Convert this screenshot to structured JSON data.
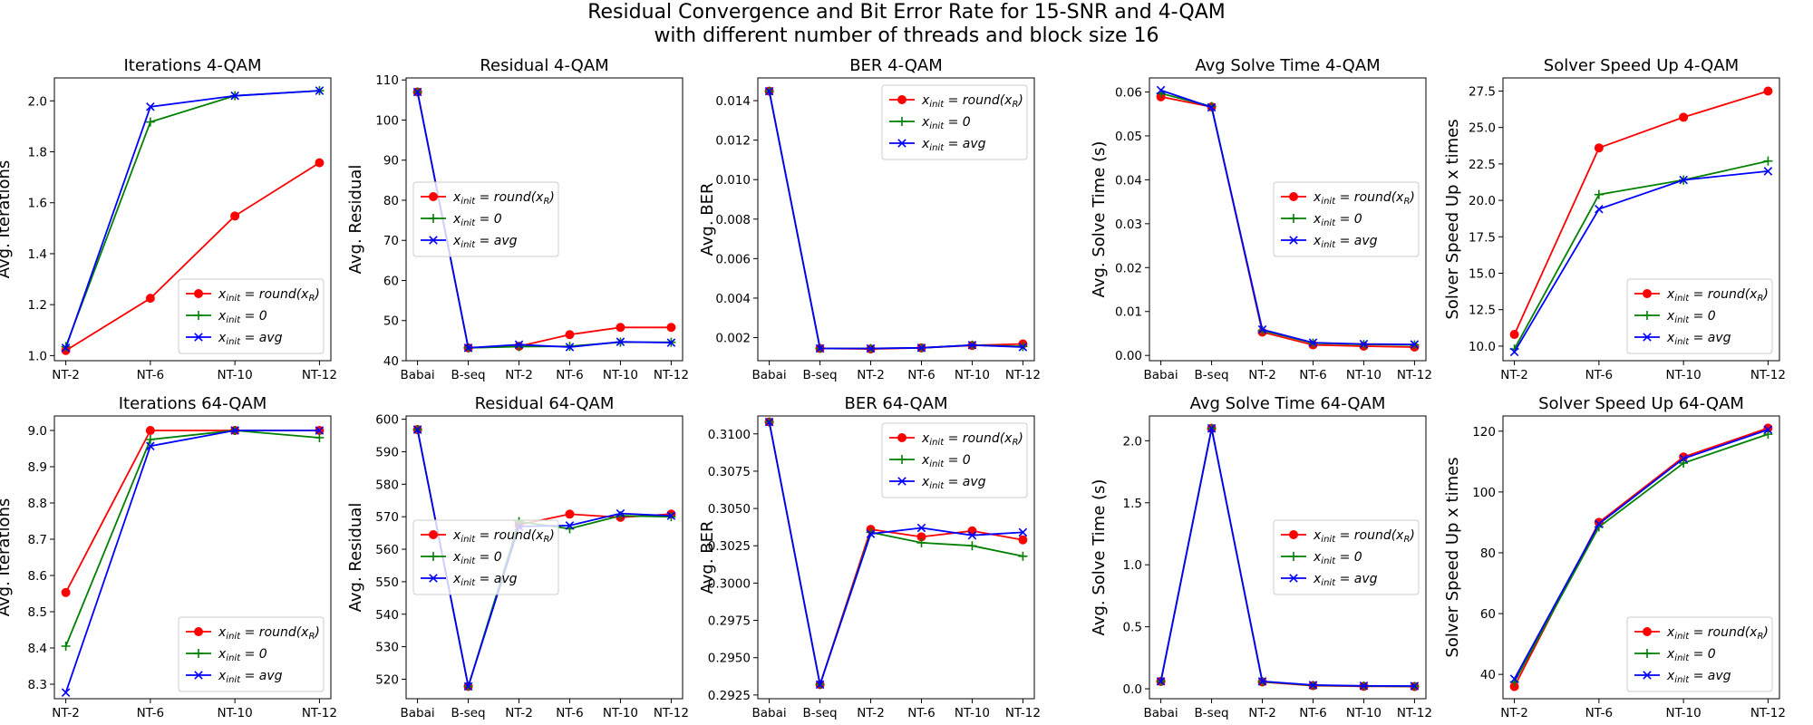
{
  "figure": {
    "title_line1": "Residual Convergence and Bit Error Rate for 15-SNR and 4-QAM",
    "title_line2": "with different number of threads and block size 16"
  },
  "legend_entries": [
    {
      "base": "x",
      "sub": "init",
      "eq": " = ",
      "expr": "round(x",
      "expr_sub": "R",
      "tail": ")",
      "color": "#ff0000",
      "marker": "circle"
    },
    {
      "base": "x",
      "sub": "init",
      "eq": " = ",
      "expr": "0",
      "expr_sub": "",
      "tail": "",
      "color": "#008000",
      "marker": "plus"
    },
    {
      "base": "x",
      "sub": "init",
      "eq": " = ",
      "expr": "avg",
      "expr_sub": "",
      "tail": "",
      "color": "#0000ff",
      "marker": "x"
    }
  ],
  "chart_data": [
    {
      "type": "line",
      "title": "Iterations 4-QAM",
      "xlabel": "",
      "ylabel": "Avg. Iterations",
      "categories": [
        "NT-2",
        "NT-6",
        "NT-10",
        "NT-12"
      ],
      "ylim": [
        0.98,
        2.09
      ],
      "yticks": [
        1.0,
        1.2,
        1.4,
        1.6,
        1.8,
        2.0
      ],
      "ytick_labels": [
        "1.0",
        "1.2",
        "1.4",
        "1.6",
        "1.8",
        "2.0"
      ],
      "legend_position": "lower-right",
      "grid": false,
      "series": [
        {
          "name": "x_init = round(x_R)",
          "color": "#ff0000",
          "marker": "circle",
          "values": [
            1.02,
            1.225,
            1.548,
            1.757
          ]
        },
        {
          "name": "x_init = 0",
          "color": "#008000",
          "marker": "plus",
          "values": [
            1.035,
            1.917,
            2.02,
            2.04
          ]
        },
        {
          "name": "x_init = avg",
          "color": "#0000ff",
          "marker": "x",
          "values": [
            1.03,
            1.977,
            2.02,
            2.04
          ]
        }
      ]
    },
    {
      "type": "line",
      "title": "Residual 4-QAM",
      "xlabel": "",
      "ylabel": "Avg. Residual",
      "categories": [
        "Babai",
        "B-seq",
        "NT-2",
        "NT-6",
        "NT-10",
        "NT-12"
      ],
      "ylim": [
        40,
        110.5
      ],
      "yticks": [
        40,
        50,
        60,
        70,
        80,
        90,
        100,
        110
      ],
      "ytick_labels": [
        "40",
        "50",
        "60",
        "70",
        "80",
        "90",
        "100",
        "110"
      ],
      "legend_position": "center-left",
      "grid": false,
      "series": [
        {
          "name": "x_init = round(x_R)",
          "color": "#ff0000",
          "marker": "circle",
          "values": [
            107.0,
            43.2,
            43.6,
            46.5,
            48.3,
            48.3
          ]
        },
        {
          "name": "x_init = 0",
          "color": "#008000",
          "marker": "plus",
          "values": [
            107.0,
            43.2,
            43.5,
            43.6,
            44.6,
            44.6
          ]
        },
        {
          "name": "x_init = avg",
          "color": "#0000ff",
          "marker": "x",
          "values": [
            107.0,
            43.2,
            44.0,
            43.4,
            44.7,
            44.5
          ]
        }
      ]
    },
    {
      "type": "line",
      "title": "BER 4-QAM",
      "xlabel": "",
      "ylabel": "Avg. BER",
      "categories": [
        "Babai",
        "B-seq",
        "NT-2",
        "NT-6",
        "NT-10",
        "NT-12"
      ],
      "ylim": [
        0.00083,
        0.01515
      ],
      "yticks": [
        0.002,
        0.004,
        0.006,
        0.008,
        0.01,
        0.012,
        0.014
      ],
      "ytick_labels": [
        "0.002",
        "0.004",
        "0.006",
        "0.008",
        "0.010",
        "0.012",
        "0.014"
      ],
      "legend_position": "top-right",
      "grid": false,
      "series": [
        {
          "name": "x_init = round(x_R)",
          "color": "#ff0000",
          "marker": "circle",
          "values": [
            0.01448,
            0.00145,
            0.00142,
            0.00148,
            0.0016,
            0.00168
          ]
        },
        {
          "name": "x_init = 0",
          "color": "#008000",
          "marker": "plus",
          "values": [
            0.01448,
            0.00145,
            0.00145,
            0.00148,
            0.00162,
            0.00155
          ]
        },
        {
          "name": "x_init = avg",
          "color": "#0000ff",
          "marker": "x",
          "values": [
            0.01448,
            0.00145,
            0.00145,
            0.00148,
            0.00162,
            0.00152
          ]
        }
      ]
    },
    {
      "type": "line",
      "title": "Avg Solve Time 4-QAM",
      "xlabel": "",
      "ylabel": "Avg. Solve Time (s)",
      "categories": [
        "Babai",
        "B-seq",
        "NT-2",
        "NT-6",
        "NT-10",
        "NT-12"
      ],
      "ylim": [
        -0.0012,
        0.0632
      ],
      "yticks": [
        0.0,
        0.01,
        0.02,
        0.03,
        0.04,
        0.05,
        0.06
      ],
      "ytick_labels": [
        "0.00",
        "0.01",
        "0.02",
        "0.03",
        "0.04",
        "0.05",
        "0.06"
      ],
      "legend_position": "center-right",
      "grid": false,
      "series": [
        {
          "name": "x_init = round(x_R)",
          "color": "#ff0000",
          "marker": "circle",
          "values": [
            0.0589,
            0.0566,
            0.0053,
            0.0024,
            0.0021,
            0.0019
          ]
        },
        {
          "name": "x_init = 0",
          "color": "#008000",
          "marker": "plus",
          "values": [
            0.0597,
            0.0567,
            0.0057,
            0.0028,
            0.0025,
            0.0024
          ]
        },
        {
          "name": "x_init = avg",
          "color": "#0000ff",
          "marker": "x",
          "values": [
            0.0604,
            0.0565,
            0.0059,
            0.0029,
            0.0026,
            0.0025
          ]
        }
      ]
    },
    {
      "type": "line",
      "title": "Solver Speed Up 4-QAM",
      "xlabel": "",
      "ylabel": "Solver Speed Up x times",
      "categories": [
        "NT-2",
        "NT-6",
        "NT-10",
        "NT-12"
      ],
      "ylim": [
        9.0,
        28.4
      ],
      "yticks": [
        10.0,
        12.5,
        15.0,
        17.5,
        20.0,
        22.5,
        25.0,
        27.5
      ],
      "ytick_labels": [
        "10.0",
        "12.5",
        "15.0",
        "17.5",
        "20.0",
        "22.5",
        "25.0",
        "27.5"
      ],
      "legend_position": "lower-right",
      "grid": false,
      "series": [
        {
          "name": "x_init = round(x_R)",
          "color": "#ff0000",
          "marker": "circle",
          "values": [
            10.8,
            23.6,
            25.7,
            27.5
          ]
        },
        {
          "name": "x_init = 0",
          "color": "#008000",
          "marker": "plus",
          "values": [
            9.8,
            20.4,
            21.4,
            22.7
          ]
        },
        {
          "name": "x_init = avg",
          "color": "#0000ff",
          "marker": "x",
          "values": [
            9.6,
            19.4,
            21.4,
            22.0
          ]
        }
      ]
    },
    {
      "type": "line",
      "title": "Iterations 64-QAM",
      "xlabel": "",
      "ylabel": "Avg. Iterations",
      "categories": [
        "NT-2",
        "NT-6",
        "NT-10",
        "NT-12"
      ],
      "ylim": [
        8.26,
        9.04
      ],
      "yticks": [
        8.3,
        8.4,
        8.5,
        8.6,
        8.7,
        8.8,
        8.9,
        9.0
      ],
      "ytick_labels": [
        "8.3",
        "8.4",
        "8.5",
        "8.6",
        "8.7",
        "8.8",
        "8.9",
        "9.0"
      ],
      "legend_position": "lower-right",
      "grid": false,
      "series": [
        {
          "name": "x_init = round(x_R)",
          "color": "#ff0000",
          "marker": "circle",
          "values": [
            8.553,
            9.0,
            9.0,
            9.0
          ]
        },
        {
          "name": "x_init = 0",
          "color": "#008000",
          "marker": "plus",
          "values": [
            8.405,
            8.975,
            9.0,
            8.98
          ]
        },
        {
          "name": "x_init = avg",
          "color": "#0000ff",
          "marker": "x",
          "values": [
            8.277,
            8.957,
            9.0,
            9.0
          ]
        }
      ]
    },
    {
      "type": "line",
      "title": "Residual 64-QAM",
      "xlabel": "",
      "ylabel": "Avg. Residual",
      "categories": [
        "Babai",
        "B-seq",
        "NT-2",
        "NT-6",
        "NT-10",
        "NT-12"
      ],
      "ylim": [
        514.0,
        601.0
      ],
      "yticks": [
        520,
        530,
        540,
        550,
        560,
        570,
        580,
        590,
        600
      ],
      "ytick_labels": [
        "520",
        "530",
        "540",
        "550",
        "560",
        "570",
        "580",
        "590",
        "600"
      ],
      "legend_position": "center-left",
      "grid": false,
      "series": [
        {
          "name": "x_init = round(x_R)",
          "color": "#ff0000",
          "marker": "circle",
          "values": [
            596.8,
            517.8,
            567.5,
            570.8,
            569.8,
            570.8
          ]
        },
        {
          "name": "x_init = 0",
          "color": "#008000",
          "marker": "plus",
          "values": [
            596.8,
            517.8,
            568.5,
            566.3,
            570.3,
            570.0
          ]
        },
        {
          "name": "x_init = avg",
          "color": "#0000ff",
          "marker": "x",
          "values": [
            596.8,
            517.8,
            567.0,
            567.3,
            571.0,
            570.3
          ]
        }
      ]
    },
    {
      "type": "line",
      "title": "BER 64-QAM",
      "xlabel": "",
      "ylabel": "Avg. BER",
      "categories": [
        "Babai",
        "B-seq",
        "NT-2",
        "NT-6",
        "NT-10",
        "NT-12"
      ],
      "ylim": [
        0.29225,
        0.3112
      ],
      "yticks": [
        0.2925,
        0.295,
        0.2975,
        0.3,
        0.3025,
        0.305,
        0.3075,
        0.31
      ],
      "ytick_labels": [
        "0.2925",
        "0.2950",
        "0.2975",
        "0.3000",
        "0.3025",
        "0.3050",
        "0.3075",
        "0.3100"
      ],
      "legend_position": "top-right",
      "grid": false,
      "series": [
        {
          "name": "x_init = round(x_R)",
          "color": "#ff0000",
          "marker": "circle",
          "values": [
            0.3108,
            0.2932,
            0.3036,
            0.3031,
            0.3035,
            0.3029
          ]
        },
        {
          "name": "x_init = 0",
          "color": "#008000",
          "marker": "plus",
          "values": [
            0.3108,
            0.2932,
            0.3034,
            0.3027,
            0.3025,
            0.3018
          ]
        },
        {
          "name": "x_init = avg",
          "color": "#0000ff",
          "marker": "x",
          "values": [
            0.3108,
            0.2932,
            0.3033,
            0.3037,
            0.3032,
            0.3034
          ]
        }
      ]
    },
    {
      "type": "line",
      "title": "Avg Solve Time 64-QAM",
      "xlabel": "",
      "ylabel": "Avg. Solve Time (s)",
      "categories": [
        "Babai",
        "B-seq",
        "NT-2",
        "NT-6",
        "NT-10",
        "NT-12"
      ],
      "ylim": [
        -0.08,
        2.2
      ],
      "yticks": [
        0.0,
        0.5,
        1.0,
        1.5,
        2.0
      ],
      "ytick_labels": [
        "0.0",
        "0.5",
        "1.0",
        "1.5",
        "2.0"
      ],
      "legend_position": "center-right",
      "grid": false,
      "series": [
        {
          "name": "x_init = round(x_R)",
          "color": "#ff0000",
          "marker": "circle",
          "values": [
            0.06,
            2.1,
            0.055,
            0.025,
            0.02,
            0.018
          ]
        },
        {
          "name": "x_init = 0",
          "color": "#008000",
          "marker": "plus",
          "values": [
            0.06,
            2.1,
            0.058,
            0.028,
            0.022,
            0.02
          ]
        },
        {
          "name": "x_init = avg",
          "color": "#0000ff",
          "marker": "x",
          "values": [
            0.06,
            2.1,
            0.06,
            0.03,
            0.024,
            0.022
          ]
        }
      ]
    },
    {
      "type": "line",
      "title": "Solver Speed Up 64-QAM",
      "xlabel": "",
      "ylabel": "Solver Speed Up x times",
      "categories": [
        "NT-2",
        "NT-6",
        "NT-10",
        "NT-12"
      ],
      "ylim": [
        32.0,
        125.0
      ],
      "yticks": [
        40,
        60,
        80,
        100,
        120
      ],
      "ytick_labels": [
        "40",
        "60",
        "80",
        "100",
        "120"
      ],
      "legend_position": "lower-right",
      "grid": false,
      "series": [
        {
          "name": "x_init = round(x_R)",
          "color": "#ff0000",
          "marker": "circle",
          "values": [
            36.0,
            90.0,
            111.5,
            121.0
          ]
        },
        {
          "name": "x_init = 0",
          "color": "#008000",
          "marker": "plus",
          "values": [
            37.5,
            88.5,
            109.5,
            119.0
          ]
        },
        {
          "name": "x_init = avg",
          "color": "#0000ff",
          "marker": "x",
          "values": [
            38.5,
            89.5,
            111.0,
            120.5
          ]
        }
      ]
    }
  ]
}
